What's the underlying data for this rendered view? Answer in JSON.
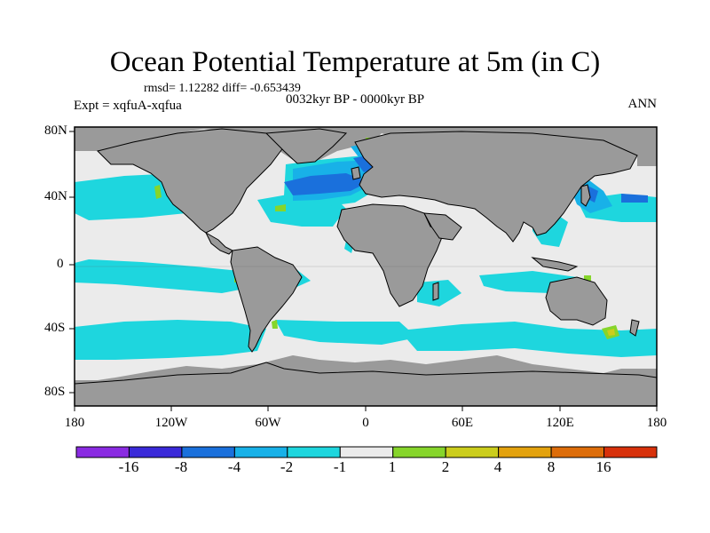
{
  "title": "Ocean Potential Temperature at 5m (in C)",
  "stats": "rmsd= 1.12282 diff= -0.653439",
  "experiment": "Expt = xqfuA-xqfua",
  "period": "0032kyr BP - 0000kyr BP",
  "season": "ANN",
  "lat_labels": [
    "80N",
    "40N",
    "0",
    "40S",
    "80S"
  ],
  "lon_labels": [
    "180",
    "120W",
    "60W",
    "0",
    "60E",
    "120E",
    "180"
  ],
  "colorbar": {
    "colors": [
      "#8a2be2",
      "#3a2ad9",
      "#1a70dc",
      "#18b1e8",
      "#1ed6de",
      "#ebebeb",
      "#86d52b",
      "#cbcd1c",
      "#e3a20e",
      "#dd6d0a",
      "#d8310b"
    ],
    "labels": [
      "-16",
      "-8",
      "-4",
      "-2",
      "-1",
      "1",
      "2",
      "4",
      "8",
      "16"
    ]
  },
  "palette": {
    "land": "#9a9a9a",
    "background": "#ebebeb",
    "cyan": "#1ed6de",
    "light_blue": "#18b1e8",
    "mid_blue": "#1a70dc",
    "green": "#86d52b",
    "yellow": "#cbcd1c"
  }
}
